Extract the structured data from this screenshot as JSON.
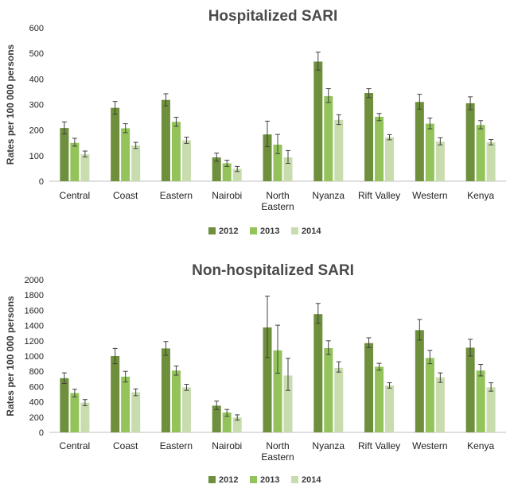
{
  "colors": {
    "2012": "#6e8f3b",
    "2013": "#93c35a",
    "2014": "#c9dcae",
    "error_bar": "#404040",
    "axis": "#bfbfbf"
  },
  "chart_data": [
    {
      "type": "bar",
      "title": "Hospitalized SARI",
      "ylabel": "Rates per 100 000 persons",
      "xlabel": "",
      "ylim": [
        0,
        600
      ],
      "yticks": [
        "0",
        "100",
        "200",
        "300",
        "400",
        "500",
        "600"
      ],
      "categories": [
        [
          "Central"
        ],
        [
          "Coast"
        ],
        [
          "Eastern"
        ],
        [
          "Nairobi"
        ],
        [
          "North",
          "Eastern"
        ],
        [
          "Nyanza"
        ],
        [
          "Rift Valley"
        ],
        [
          "Western"
        ],
        [
          "Kenya"
        ]
      ],
      "legend_position": "bottom",
      "series": [
        {
          "name": "2012",
          "values": [
            208,
            287,
            318,
            93,
            183,
            468,
            345,
            310,
            305
          ],
          "ci_low": [
            185,
            262,
            295,
            78,
            135,
            435,
            327,
            282,
            280
          ],
          "ci_high": [
            232,
            312,
            342,
            110,
            235,
            505,
            362,
            340,
            330
          ]
        },
        {
          "name": "2013",
          "values": [
            150,
            207,
            232,
            70,
            143,
            333,
            252,
            225,
            220
          ],
          "ci_low": [
            137,
            190,
            215,
            58,
            108,
            308,
            237,
            205,
            205
          ],
          "ci_high": [
            168,
            225,
            250,
            82,
            183,
            362,
            265,
            247,
            237
          ]
        },
        {
          "name": "2014",
          "values": [
            105,
            140,
            160,
            48,
            93,
            240,
            172,
            155,
            152
          ],
          "ci_low": [
            95,
            128,
            148,
            38,
            70,
            222,
            162,
            142,
            142
          ],
          "ci_high": [
            118,
            152,
            172,
            58,
            120,
            260,
            182,
            170,
            163
          ]
        }
      ]
    },
    {
      "type": "bar",
      "title": "Non-hospitalized SARI",
      "ylabel": "Rates per 100 000 persons",
      "xlabel": "",
      "ylim": [
        0,
        2000
      ],
      "yticks": [
        "0",
        "200",
        "400",
        "600",
        "800",
        "1000",
        "1200",
        "1400",
        "1600",
        "1800",
        "2000"
      ],
      "categories": [
        [
          "Central"
        ],
        [
          "Coast"
        ],
        [
          "Eastern"
        ],
        [
          "Nairobi"
        ],
        [
          "North",
          "Eastern"
        ],
        [
          "Nyanza"
        ],
        [
          "Rift Valley"
        ],
        [
          "Western"
        ],
        [
          "Kenya"
        ]
      ],
      "legend_position": "bottom",
      "series": [
        {
          "name": "2012",
          "values": [
            710,
            1000,
            1100,
            350,
            1375,
            1550,
            1170,
            1340,
            1110
          ],
          "ci_low": [
            640,
            900,
            1010,
            300,
            980,
            1430,
            1110,
            1210,
            1000
          ],
          "ci_high": [
            780,
            1100,
            1190,
            410,
            1785,
            1690,
            1240,
            1480,
            1220
          ]
        },
        {
          "name": "2013",
          "values": [
            515,
            730,
            810,
            260,
            1075,
            1105,
            860,
            975,
            810
          ],
          "ci_low": [
            465,
            660,
            750,
            210,
            775,
            1020,
            815,
            900,
            740
          ],
          "ci_high": [
            565,
            800,
            870,
            300,
            1405,
            1200,
            905,
            1075,
            890
          ]
        },
        {
          "name": "2014",
          "values": [
            390,
            525,
            590,
            195,
            745,
            845,
            615,
            720,
            590
          ],
          "ci_low": [
            350,
            480,
            550,
            160,
            550,
            790,
            580,
            655,
            540
          ],
          "ci_high": [
            430,
            570,
            630,
            230,
            970,
            925,
            650,
            780,
            650
          ]
        }
      ]
    }
  ]
}
